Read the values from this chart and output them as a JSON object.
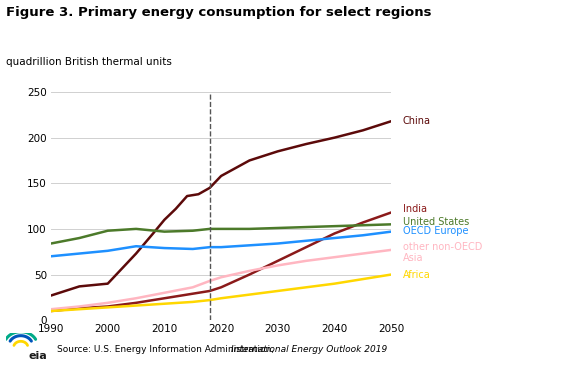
{
  "title": "Figure 3. Primary energy consumption for select regions",
  "ylabel": "quadrillion British thermal units",
  "source_normal": "Source: U.S. Energy Information Administration, ",
  "source_italic": "International Energy Outlook 2019",
  "xlim": [
    1990,
    2050
  ],
  "ylim": [
    0,
    250
  ],
  "yticks": [
    0,
    50,
    100,
    150,
    200,
    250
  ],
  "xticks": [
    1990,
    2000,
    2010,
    2020,
    2030,
    2040,
    2050
  ],
  "dashed_vline": 2018,
  "series": {
    "China": {
      "color": "#5C0A0A",
      "years": [
        1990,
        1995,
        2000,
        2005,
        2008,
        2010,
        2012,
        2014,
        2016,
        2018,
        2020,
        2025,
        2030,
        2035,
        2040,
        2045,
        2050
      ],
      "values": [
        27,
        37,
        40,
        73,
        95,
        110,
        122,
        136,
        138,
        145,
        158,
        175,
        185,
        193,
        200,
        208,
        218
      ]
    },
    "India": {
      "color": "#8B1A1A",
      "years": [
        1990,
        1995,
        2000,
        2005,
        2010,
        2015,
        2018,
        2020,
        2025,
        2030,
        2035,
        2040,
        2045,
        2050
      ],
      "values": [
        10,
        13,
        15,
        19,
        24,
        29,
        32,
        36,
        50,
        65,
        80,
        95,
        107,
        118
      ]
    },
    "United States": {
      "color": "#4C7A2A",
      "years": [
        1990,
        1995,
        2000,
        2005,
        2010,
        2015,
        2018,
        2020,
        2025,
        2030,
        2035,
        2040,
        2045,
        2050
      ],
      "values": [
        84,
        90,
        98,
        100,
        97,
        98,
        100,
        100,
        100,
        101,
        102,
        103,
        104,
        105
      ]
    },
    "OECD Europe": {
      "color": "#1E90FF",
      "years": [
        1990,
        1995,
        2000,
        2005,
        2010,
        2015,
        2018,
        2020,
        2025,
        2030,
        2035,
        2040,
        2045,
        2050
      ],
      "values": [
        70,
        73,
        76,
        81,
        79,
        78,
        80,
        80,
        82,
        84,
        87,
        90,
        93,
        97
      ]
    },
    "other non-OECD Asia": {
      "color": "#FFB6C1",
      "years": [
        1990,
        1995,
        2000,
        2005,
        2010,
        2015,
        2018,
        2020,
        2025,
        2030,
        2035,
        2040,
        2045,
        2050
      ],
      "values": [
        12,
        15,
        19,
        24,
        30,
        36,
        43,
        47,
        54,
        60,
        65,
        69,
        73,
        77
      ]
    },
    "Africa": {
      "color": "#FFD700",
      "years": [
        1990,
        1995,
        2000,
        2005,
        2010,
        2015,
        2018,
        2020,
        2025,
        2030,
        2035,
        2040,
        2045,
        2050
      ],
      "values": [
        10,
        12,
        14,
        16,
        18,
        20,
        22,
        24,
        28,
        32,
        36,
        40,
        45,
        50
      ]
    }
  },
  "labels": {
    "China": {
      "color": "#5C0A0A",
      "text": "China",
      "y": 218
    },
    "India": {
      "color": "#8B1A1A",
      "text": "India",
      "y": 122
    },
    "United States": {
      "color": "#4C7A2A",
      "text": "United States",
      "y": 108
    },
    "OECD Europe": {
      "color": "#1E90FF",
      "text": "OECD Europe",
      "y": 98
    },
    "other non-OECD Asia": {
      "color": "#FFB6C1",
      "text": "other non-OECD\nAsia",
      "y": 74
    },
    "Africa": {
      "color": "#FFD700",
      "text": "Africa",
      "y": 50
    }
  },
  "background_color": "#ffffff",
  "grid_color": "#d0d0d0"
}
